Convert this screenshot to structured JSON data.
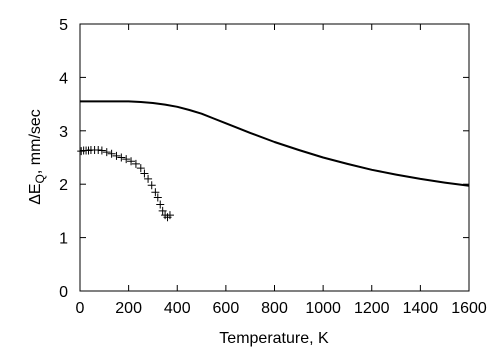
{
  "chart_data": {
    "type": "line",
    "title": "",
    "xlabel": "Temperature, K",
    "ylabel_parts": {
      "main": "ΔE",
      "subscript": "Q",
      "rest": ", mm/sec"
    },
    "xlim": [
      0,
      1600
    ],
    "ylim": [
      0,
      5
    ],
    "x_ticks": [
      0,
      200,
      400,
      600,
      800,
      1000,
      1200,
      1400,
      1600
    ],
    "y_ticks": [
      0,
      1,
      2,
      3,
      4,
      5
    ],
    "grid": false,
    "legend": "none",
    "series": [
      {
        "style": "line",
        "color": "#000000",
        "x": [
          0,
          100,
          200,
          250,
          300,
          350,
          400,
          450,
          500,
          550,
          600,
          700,
          800,
          900,
          1000,
          1100,
          1200,
          1300,
          1400,
          1500,
          1600
        ],
        "y": [
          3.55,
          3.55,
          3.55,
          3.54,
          3.52,
          3.49,
          3.45,
          3.39,
          3.32,
          3.23,
          3.14,
          2.96,
          2.79,
          2.64,
          2.5,
          2.38,
          2.27,
          2.18,
          2.1,
          2.03,
          1.97
        ]
      },
      {
        "style": "markers",
        "marker": "plus",
        "color": "#000000",
        "x": [
          5,
          15,
          25,
          35,
          45,
          60,
          75,
          90,
          110,
          130,
          150,
          170,
          190,
          210,
          230,
          250,
          265,
          280,
          295,
          310,
          320,
          330,
          340,
          350,
          360,
          370
        ],
        "y": [
          2.62,
          2.63,
          2.63,
          2.63,
          2.64,
          2.64,
          2.64,
          2.63,
          2.6,
          2.57,
          2.53,
          2.5,
          2.47,
          2.43,
          2.38,
          2.3,
          2.2,
          2.1,
          1.98,
          1.85,
          1.75,
          1.62,
          1.5,
          1.42,
          1.38,
          1.42
        ]
      }
    ]
  }
}
